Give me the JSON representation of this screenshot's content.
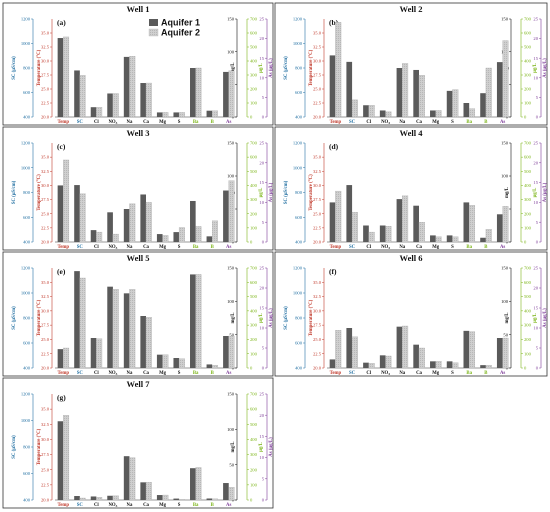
{
  "colors": {
    "aquifer1": "#5a5a5a",
    "aquifer2": "#c8c8c8",
    "axis_temp": "#c0392b",
    "axis_sc": "#2471a3",
    "axis_mgl": "#111111",
    "axis_ugl": "#7cb518",
    "axis_as": "#7d3c98"
  },
  "chart_data": [
    {
      "type": "bar",
      "panel": "(a)",
      "title": "Well 1",
      "categories": [
        "Temp",
        "SC",
        "Cl",
        "NO3",
        "Na",
        "Ca",
        "Mg",
        "S",
        "Ba",
        "B",
        "As"
      ],
      "category_axes": [
        "temp",
        "sc",
        "mgl",
        "mgl",
        "mgl",
        "mgl",
        "mgl",
        "mgl",
        "ugl",
        "ugl",
        "as"
      ],
      "series": [
        {
          "name": "Aquifer 1",
          "values": [
            34.1,
            780,
            15,
            36,
            92,
            52,
            7,
            7,
            350,
            45,
            11.5
          ]
        },
        {
          "name": "Aquifer 2",
          "values": [
            34.3,
            740,
            15,
            36,
            93,
            52,
            7,
            7,
            350,
            45,
            11.8
          ]
        }
      ],
      "axes": {
        "sc": {
          "label": "SC (µS/cm)",
          "ylim": [
            400,
            1200
          ],
          "ticks": [
            400,
            600,
            800,
            1000,
            1200
          ]
        },
        "temp": {
          "label": "Temperature (°C)",
          "ylim": [
            20.0,
            37.5
          ],
          "ticks": [
            20.0,
            22.5,
            25.0,
            27.5,
            30.0,
            32.5,
            35.0
          ]
        },
        "mgl": {
          "label": "mg/L",
          "ylim": [
            0,
            150
          ],
          "ticks": [
            0,
            50,
            100,
            150
          ]
        },
        "ugl": {
          "label": "µg/L",
          "ylim": [
            0,
            700
          ],
          "ticks": [
            0,
            100,
            200,
            300,
            400,
            500,
            600,
            700
          ]
        },
        "as": {
          "label": "As (µg/L)",
          "ylim": [
            0,
            25
          ],
          "ticks": [
            0,
            5,
            10,
            15,
            20,
            25
          ]
        }
      }
    },
    {
      "type": "bar",
      "panel": "(b)",
      "title": "Well 2",
      "categories": [
        "Temp",
        "SC",
        "Cl",
        "NO3",
        "Na",
        "Ca",
        "Mg",
        "S",
        "Ba",
        "B",
        "As"
      ],
      "category_axes": [
        "temp",
        "sc",
        "mgl",
        "mgl",
        "mgl",
        "mgl",
        "mgl",
        "mgl",
        "ugl",
        "ugl",
        "as"
      ],
      "series": [
        {
          "name": "Aquifer 1",
          "values": [
            31.0,
            850,
            18,
            10,
            75,
            72,
            10,
            40,
            100,
            170,
            14.0
          ]
        },
        {
          "name": "Aquifer 2",
          "values": [
            36.9,
            540,
            18,
            8,
            82,
            64,
            10,
            42,
            60,
            350,
            19.5
          ]
        }
      ],
      "axes": {
        "sc": {
          "label": "SC (µS/cm)",
          "ylim": [
            400,
            1200
          ],
          "ticks": [
            400,
            600,
            800,
            1000,
            1200
          ]
        },
        "temp": {
          "label": "Temperature (°C)",
          "ylim": [
            20.0,
            37.5
          ],
          "ticks": [
            20.0,
            22.5,
            25.0,
            27.5,
            30.0,
            32.5,
            35.0
          ]
        },
        "mgl": {
          "label": "mg/L",
          "ylim": [
            0,
            150
          ],
          "ticks": [
            0,
            50,
            100,
            150
          ]
        },
        "ugl": {
          "label": "µg/L",
          "ylim": [
            0,
            700
          ],
          "ticks": [
            0,
            100,
            200,
            300,
            400,
            500,
            600,
            700
          ]
        },
        "as": {
          "label": "As (µg/L)",
          "ylim": [
            0,
            25
          ],
          "ticks": [
            0,
            5,
            10,
            15,
            20,
            25
          ]
        }
      }
    },
    {
      "type": "bar",
      "panel": "(c)",
      "title": "Well 3",
      "categories": [
        "Temp",
        "SC",
        "Cl",
        "NO3",
        "Na",
        "Ca",
        "Mg",
        "S",
        "Ba",
        "B",
        "As"
      ],
      "category_axes": [
        "temp",
        "sc",
        "mgl",
        "mgl",
        "mgl",
        "mgl",
        "mgl",
        "mgl",
        "ugl",
        "ugl",
        "as"
      ],
      "series": [
        {
          "name": "Aquifer 1",
          "values": [
            30.0,
            860,
            18,
            45,
            50,
            72,
            12,
            15,
            290,
            40,
            13.0
          ]
        },
        {
          "name": "Aquifer 2",
          "values": [
            34.5,
            790,
            15,
            12,
            58,
            60,
            10,
            22,
            110,
            150,
            15.5
          ]
        }
      ],
      "axes": {
        "sc": {
          "label": "SC (µS/cm)",
          "ylim": [
            400,
            1200
          ],
          "ticks": [
            400,
            600,
            800,
            1000,
            1200
          ]
        },
        "temp": {
          "label": "Temperature (°C)",
          "ylim": [
            20.0,
            37.5
          ],
          "ticks": [
            20.0,
            22.5,
            25.0,
            27.5,
            30.0,
            32.5,
            35.0
          ]
        },
        "mgl": {
          "label": "mg/L",
          "ylim": [
            0,
            150
          ],
          "ticks": [
            0,
            50,
            100,
            150
          ]
        },
        "ugl": {
          "label": "µg/L",
          "ylim": [
            0,
            700
          ],
          "ticks": [
            0,
            100,
            200,
            300,
            400,
            500,
            600,
            700
          ]
        },
        "as": {
          "label": "As (µg/L)",
          "ylim": [
            0,
            25
          ],
          "ticks": [
            0,
            5,
            10,
            15,
            20,
            25
          ]
        }
      }
    },
    {
      "type": "bar",
      "panel": "(d)",
      "title": "Well 4",
      "categories": [
        "Temp",
        "SC",
        "Cl",
        "NO3",
        "Na",
        "Ca",
        "Mg",
        "S",
        "Ba",
        "B",
        "As"
      ],
      "category_axes": [
        "temp",
        "sc",
        "mgl",
        "mgl",
        "mgl",
        "mgl",
        "mgl",
        "mgl",
        "ugl",
        "ugl",
        "as"
      ],
      "series": [
        {
          "name": "Aquifer 1",
          "values": [
            27.0,
            860,
            25,
            25,
            65,
            55,
            10,
            10,
            280,
            30,
            7.0
          ]
        },
        {
          "name": "Aquifer 2",
          "values": [
            29.0,
            640,
            15,
            24,
            70,
            30,
            8,
            8,
            260,
            90,
            9.0
          ]
        }
      ],
      "axes": {
        "sc": {
          "label": "SC (µS/cm)",
          "ylim": [
            400,
            1200
          ],
          "ticks": [
            400,
            600,
            800,
            1000,
            1200
          ]
        },
        "temp": {
          "label": "Temperature (°C)",
          "ylim": [
            20.0,
            37.5
          ],
          "ticks": [
            20.0,
            22.5,
            25.0,
            27.5,
            30.0,
            32.5,
            35.0
          ]
        },
        "mgl": {
          "label": "mg/L",
          "ylim": [
            0,
            150
          ],
          "ticks": [
            0,
            50,
            100,
            150
          ]
        },
        "ugl": {
          "label": "µg/L",
          "ylim": [
            0,
            700
          ],
          "ticks": [
            0,
            100,
            200,
            300,
            400,
            500,
            600,
            700
          ]
        },
        "as": {
          "label": "As (µg/L)",
          "ylim": [
            0,
            25
          ],
          "ticks": [
            0,
            5,
            10,
            15,
            20,
            25
          ]
        }
      }
    },
    {
      "type": "bar",
      "panel": "(e)",
      "title": "Well 5",
      "categories": [
        "Temp",
        "SC",
        "Cl",
        "NO3",
        "Na",
        "Ca",
        "Mg",
        "S",
        "Ba",
        "B",
        "As"
      ],
      "category_axes": [
        "temp",
        "sc",
        "mgl",
        "mgl",
        "mgl",
        "mgl",
        "mgl",
        "mgl",
        "ugl",
        "ugl",
        "as"
      ],
      "series": [
        {
          "name": "Aquifer 1",
          "values": [
            23.3,
            1175,
            45,
            122,
            112,
            78,
            20,
            15,
            655,
            25,
            8.0
          ]
        },
        {
          "name": "Aquifer 2",
          "values": [
            23.5,
            1120,
            44,
            118,
            118,
            76,
            20,
            14,
            655,
            20,
            8.0
          ]
        }
      ],
      "axes": {
        "sc": {
          "label": "SC (µS/cm)",
          "ylim": [
            400,
            1200
          ],
          "ticks": [
            400,
            600,
            800,
            1000,
            1200
          ]
        },
        "temp": {
          "label": "Temperature (°C)",
          "ylim": [
            20.0,
            37.5
          ],
          "ticks": [
            20.0,
            22.5,
            25.0,
            27.5,
            30.0,
            32.5,
            35.0
          ]
        },
        "mgl": {
          "label": "mg/L",
          "ylim": [
            0,
            150
          ],
          "ticks": [
            0,
            50,
            100,
            150
          ]
        },
        "ugl": {
          "label": "µg/L",
          "ylim": [
            0,
            700
          ],
          "ticks": [
            0,
            100,
            200,
            300,
            400,
            500,
            600,
            700
          ]
        },
        "as": {
          "label": "As (µg/L)",
          "ylim": [
            0,
            25
          ],
          "ticks": [
            0,
            5,
            10,
            15,
            20,
            25
          ]
        }
      }
    },
    {
      "type": "bar",
      "panel": "(f)",
      "title": "Well 6",
      "categories": [
        "Temp",
        "SC",
        "Cl",
        "NO3",
        "Na",
        "Ca",
        "Mg",
        "S",
        "Ba",
        "B",
        "As"
      ],
      "category_axes": [
        "temp",
        "sc",
        "mgl",
        "mgl",
        "mgl",
        "mgl",
        "mgl",
        "mgl",
        "ugl",
        "ugl",
        "as"
      ],
      "series": [
        {
          "name": "Aquifer 1",
          "values": [
            21.5,
            720,
            8,
            19,
            62,
            35,
            10,
            10,
            260,
            20,
            7.5
          ]
        },
        {
          "name": "Aquifer 2",
          "values": [
            26.6,
            650,
            7,
            18,
            63,
            30,
            10,
            8,
            255,
            20,
            7.5
          ]
        }
      ],
      "axes": {
        "sc": {
          "label": "SC (µS/cm)",
          "ylim": [
            400,
            1200
          ],
          "ticks": [
            400,
            600,
            800,
            1000,
            1200
          ]
        },
        "temp": {
          "label": "Temperature (°C)",
          "ylim": [
            20.0,
            37.5
          ],
          "ticks": [
            20.0,
            22.5,
            25.0,
            27.5,
            30.0,
            32.5,
            35.0
          ]
        },
        "mgl": {
          "label": "mg/L",
          "ylim": [
            0,
            150
          ],
          "ticks": [
            0,
            50,
            100,
            150
          ]
        },
        "ugl": {
          "label": "µg/L",
          "ylim": [
            0,
            700
          ],
          "ticks": [
            0,
            100,
            200,
            300,
            400,
            500,
            600,
            700
          ]
        },
        "as": {
          "label": "As (µg/L)",
          "ylim": [
            0,
            25
          ],
          "ticks": [
            0,
            5,
            10,
            15,
            20,
            25
          ]
        }
      }
    },
    {
      "type": "bar",
      "panel": "(g)",
      "title": "Well 7",
      "categories": [
        "Temp",
        "SC",
        "Cl",
        "NO3",
        "Na",
        "Ca",
        "Mg",
        "S",
        "Ba",
        "B",
        "As"
      ],
      "category_axes": [
        "temp",
        "sc",
        "mgl",
        "mgl",
        "mgl",
        "mgl",
        "mgl",
        "mgl",
        "ugl",
        "ugl",
        "as"
      ],
      "series": [
        {
          "name": "Aquifer 1",
          "values": [
            33.0,
            430,
            5,
            6,
            62,
            25,
            7,
            2,
            210,
            10,
            4.0
          ]
        },
        {
          "name": "Aquifer 2",
          "values": [
            34.0,
            415,
            4,
            6,
            60,
            25,
            7,
            1,
            215,
            8,
            3.0
          ]
        }
      ],
      "axes": {
        "sc": {
          "label": "SC (µS/cm)",
          "ylim": [
            400,
            1200
          ],
          "ticks": [
            400,
            600,
            800,
            1000,
            1200
          ]
        },
        "temp": {
          "label": "Temperature (°C)",
          "ylim": [
            20.0,
            37.5
          ],
          "ticks": [
            20.0,
            22.5,
            25.0,
            27.5,
            30.0,
            32.5,
            35.0
          ]
        },
        "mgl": {
          "label": "mg/L",
          "ylim": [
            0,
            150
          ],
          "ticks": [
            0,
            50,
            100,
            150
          ]
        },
        "ugl": {
          "label": "µg/L",
          "ylim": [
            0,
            700
          ],
          "ticks": [
            0,
            100,
            200,
            300,
            400,
            500,
            600,
            700
          ]
        },
        "as": {
          "label": "As (µg/L)",
          "ylim": [
            0,
            25
          ],
          "ticks": [
            0,
            5,
            10,
            15,
            20,
            25
          ]
        }
      }
    }
  ]
}
